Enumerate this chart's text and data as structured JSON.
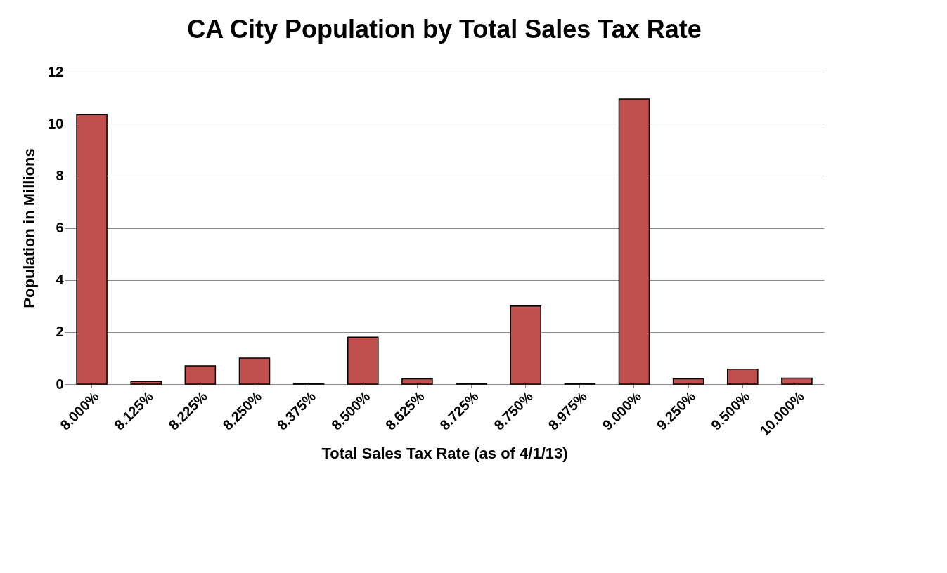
{
  "chart_data": {
    "type": "bar",
    "title": "CA City Population by Total Sales Tax Rate",
    "xlabel": "Total Sales Tax Rate (as of 4/1/13)",
    "ylabel": "Population in Millions",
    "categories": [
      "8.000%",
      "8.125%",
      "8.225%",
      "8.250%",
      "8.375%",
      "8.500%",
      "8.625%",
      "8.725%",
      "8.750%",
      "8.975%",
      "9.000%",
      "9.250%",
      "9.500%",
      "10.000%"
    ],
    "series": [
      {
        "color": "#c0504d",
        "values": [
          10.35,
          0.1,
          0.7,
          1.0,
          0.02,
          1.8,
          0.2,
          0.02,
          3.0,
          0.02,
          10.95,
          0.2,
          0.57,
          0.23
        ]
      }
    ],
    "ylim": [
      0,
      12
    ],
    "yticks": [
      0,
      2,
      4,
      6,
      8,
      10,
      12
    ],
    "grid": "y"
  }
}
